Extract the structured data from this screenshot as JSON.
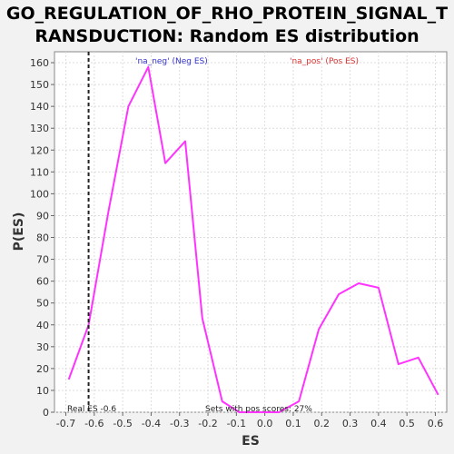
{
  "chart_data": {
    "type": "line",
    "title_lines": [
      "GO_REGULATION_OF_RHO_PROTEIN_SIGNAL_T",
      "RANSDUCTION: Random ES distribution"
    ],
    "xlabel": "ES",
    "ylabel": "P(ES)",
    "xlim": [
      -0.74,
      0.64
    ],
    "ylim": [
      0,
      165
    ],
    "xticks": [
      -0.7,
      -0.6,
      -0.5,
      -0.4,
      -0.3,
      -0.2,
      -0.1,
      0.0,
      0.1,
      0.2,
      0.3,
      0.4,
      0.5,
      0.6
    ],
    "xtick_labels": [
      "-0.7",
      "-0.6",
      "-0.5",
      "-0.4",
      "-0.3",
      "-0.2",
      "-0.1",
      "0.0",
      "0.1",
      "0.2",
      "0.3",
      "0.4",
      "0.5",
      "0.6"
    ],
    "yticks": [
      0,
      10,
      20,
      30,
      40,
      50,
      60,
      70,
      80,
      90,
      100,
      110,
      120,
      130,
      140,
      150,
      160
    ],
    "ytick_labels": [
      "0",
      "10",
      "20",
      "30",
      "40",
      "50",
      "60",
      "70",
      "80",
      "90",
      "100",
      "110",
      "120",
      "130",
      "140",
      "150",
      "160"
    ],
    "grid": true,
    "series": [
      {
        "name": "distribution",
        "color": "#ff33ff",
        "x": [
          -0.69,
          -0.62,
          -0.55,
          -0.48,
          -0.41,
          -0.35,
          -0.28,
          -0.22,
          -0.15,
          -0.09,
          -0.02,
          0.05,
          0.12,
          0.19,
          0.26,
          0.33,
          0.4,
          0.47,
          0.54,
          0.61
        ],
        "y": [
          15,
          40,
          92,
          140,
          158,
          114,
          124,
          43,
          5,
          0,
          0,
          0,
          5,
          38,
          54,
          59,
          57,
          22,
          25,
          8
        ]
      }
    ],
    "real_es": {
      "value": -0.62,
      "label": "Real ES -0.6"
    },
    "legend": [
      {
        "text": "'na_neg' (Neg ES)",
        "color": "#3333cc"
      },
      {
        "text": "'na_pos' (Pos ES)",
        "color": "#dd3333"
      }
    ],
    "annotation": "Sets with pos scores: 27%"
  }
}
